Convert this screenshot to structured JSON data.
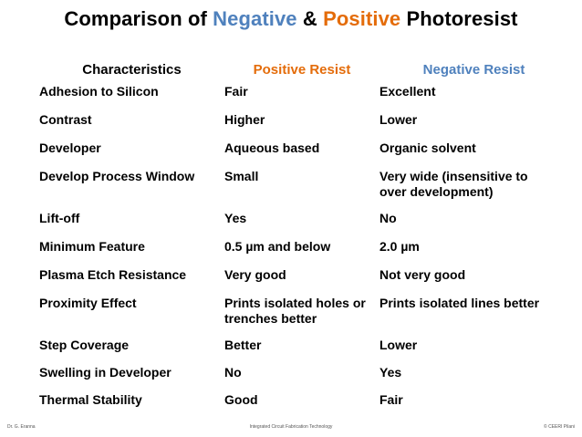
{
  "title": {
    "part1": "Comparison of ",
    "negative": "Negative",
    "amp": " & ",
    "positive": "Positive",
    "part2": " Photoresist"
  },
  "colors": {
    "negative": "#4f81bd",
    "positive": "#e46c0a"
  },
  "table": {
    "headers": [
      "Characteristics",
      "Positive Resist",
      "Negative Resist"
    ],
    "rows": [
      [
        "Adhesion to Silicon",
        "Fair",
        "Excellent"
      ],
      [
        "Contrast",
        "Higher",
        "Lower"
      ],
      [
        "Developer",
        "Aqueous based",
        "Organic solvent"
      ],
      [
        "Develop Process Window",
        "Small",
        "Very wide (insensitive to over development)"
      ],
      [
        "Lift-off",
        "Yes",
        "No"
      ],
      [
        "Minimum Feature",
        "0.5 µm and below",
        "2.0 µm"
      ],
      [
        "Plasma Etch Resistance",
        "Very good",
        "Not very good"
      ],
      [
        "Proximity Effect",
        "Prints isolated holes or trenches better",
        "Prints isolated lines better"
      ],
      [
        "Step Coverage",
        "Better",
        "Lower"
      ],
      [
        "Swelling in Developer",
        "No",
        "Yes"
      ],
      [
        "Thermal Stability",
        "Good",
        "Fair"
      ]
    ]
  },
  "footer": {
    "left": "Dr. G. Eranna",
    "center": "Integrated Circuit Fabrication Technology",
    "right": "© CEERI Pilani"
  }
}
